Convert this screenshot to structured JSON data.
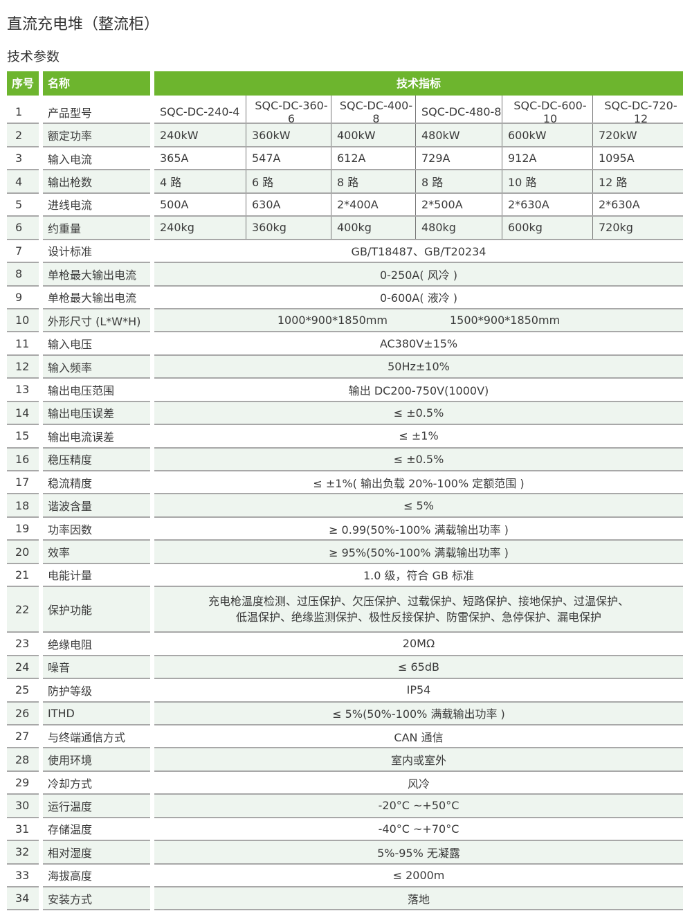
{
  "title": "直流充电堆（整流柜）",
  "subtitle": "技术参数",
  "header": {
    "seq": "序号",
    "name": "名称",
    "spec": "技术指标"
  },
  "colors": {
    "accent": "#6db52e",
    "alt_row": "#eef5ef"
  },
  "rows": [
    {
      "no": "1",
      "name": "产品型号",
      "values": [
        "SQC-DC-240-4",
        "SQC-DC-360-6",
        "SQC-DC-400-8",
        "SQC-DC-480-8",
        "SQC-DC-600-10",
        "SQC-DC-720-12"
      ]
    },
    {
      "no": "2",
      "name": "额定功率",
      "values": [
        "240kW",
        "360kW",
        "400kW",
        "480kW",
        "600kW",
        "720kW"
      ]
    },
    {
      "no": "3",
      "name": "输入电流",
      "values": [
        "365A",
        "547A",
        "612A",
        "729A",
        "912A",
        "1095A"
      ]
    },
    {
      "no": "4",
      "name": "输出枪数",
      "values": [
        "4 路",
        "6 路",
        "8 路",
        "8 路",
        "10 路",
        "12 路"
      ]
    },
    {
      "no": "5",
      "name": "进线电流",
      "values": [
        "500A",
        "630A",
        "2*400A",
        "2*500A",
        "2*630A",
        "2*630A"
      ]
    },
    {
      "no": "6",
      "name": "约重量",
      "values": [
        "240kg",
        "360kg",
        "400kg",
        "480kg",
        "600kg",
        "720kg"
      ]
    },
    {
      "no": "7",
      "name": "设计标准",
      "value": "GB/T18487、GB/T20234"
    },
    {
      "no": "8",
      "name": "单枪最大输出电流",
      "value": "0-250A( 风冷 )"
    },
    {
      "no": "9",
      "name": "单枪最大输出电流",
      "value": "0-600A( 液冷 )"
    },
    {
      "no": "10",
      "name": "外形尺寸 (L*W*H)",
      "split": [
        "1000*900*1850mm",
        "1500*900*1850mm"
      ]
    },
    {
      "no": "11",
      "name": "输入电压",
      "value": "AC380V±15%"
    },
    {
      "no": "12",
      "name": "输入频率",
      "value": "50Hz±10%"
    },
    {
      "no": "13",
      "name": "输出电压范围",
      "value": "输出 DC200-750V(1000V)"
    },
    {
      "no": "14",
      "name": "输出电压误差",
      "value": "≤ ±0.5%"
    },
    {
      "no": "15",
      "name": "输出电流误差",
      "value": "≤ ±1%"
    },
    {
      "no": "16",
      "name": "稳压精度",
      "value": "≤ ±0.5%"
    },
    {
      "no": "17",
      "name": "稳流精度",
      "value": "≤ ±1%( 输出负载 20%-100% 定额范围 )"
    },
    {
      "no": "18",
      "name": "谐波含量",
      "value": "≤ 5%"
    },
    {
      "no": "19",
      "name": "功率因数",
      "value": "≥ 0.99(50%-100% 满载输出功率 )"
    },
    {
      "no": "20",
      "name": "效率",
      "value": "≥ 95%(50%-100% 满载输出功率 )"
    },
    {
      "no": "21",
      "name": "电能计量",
      "value": "1.0 级，符合 GB 标准"
    },
    {
      "no": "22",
      "name": "保护功能",
      "lines": [
        "充电枪温度检测、过压保护、欠压保护、过载保护、短路保护、接地保护、过温保护、",
        "低温保护、绝缘监测保护、极性反接保护、防雷保护、急停保护、漏电保护"
      ]
    },
    {
      "no": "23",
      "name": "绝缘电阻",
      "value": "20MΩ"
    },
    {
      "no": "24",
      "name": "噪音",
      "value": "≤ 65dB"
    },
    {
      "no": "25",
      "name": "防护等级",
      "value": "IP54"
    },
    {
      "no": "26",
      "name": "ITHD",
      "value": "≤ 5%(50%-100% 满载输出功率 )"
    },
    {
      "no": "27",
      "name": "与终端通信方式",
      "value": "CAN 通信"
    },
    {
      "no": "28",
      "name": "使用环境",
      "value": "室内或室外"
    },
    {
      "no": "29",
      "name": "冷却方式",
      "value": "风冷"
    },
    {
      "no": "30",
      "name": "运行温度",
      "value": "-20°C ~+50°C"
    },
    {
      "no": "31",
      "name": "存储温度",
      "value": "-40°C ~+70°C"
    },
    {
      "no": "32",
      "name": "相对湿度",
      "value": "5%-95% 无凝露"
    },
    {
      "no": "33",
      "name": "海拔高度",
      "value": "≤ 2000m"
    },
    {
      "no": "34",
      "name": "安装方式",
      "value": "落地"
    }
  ]
}
